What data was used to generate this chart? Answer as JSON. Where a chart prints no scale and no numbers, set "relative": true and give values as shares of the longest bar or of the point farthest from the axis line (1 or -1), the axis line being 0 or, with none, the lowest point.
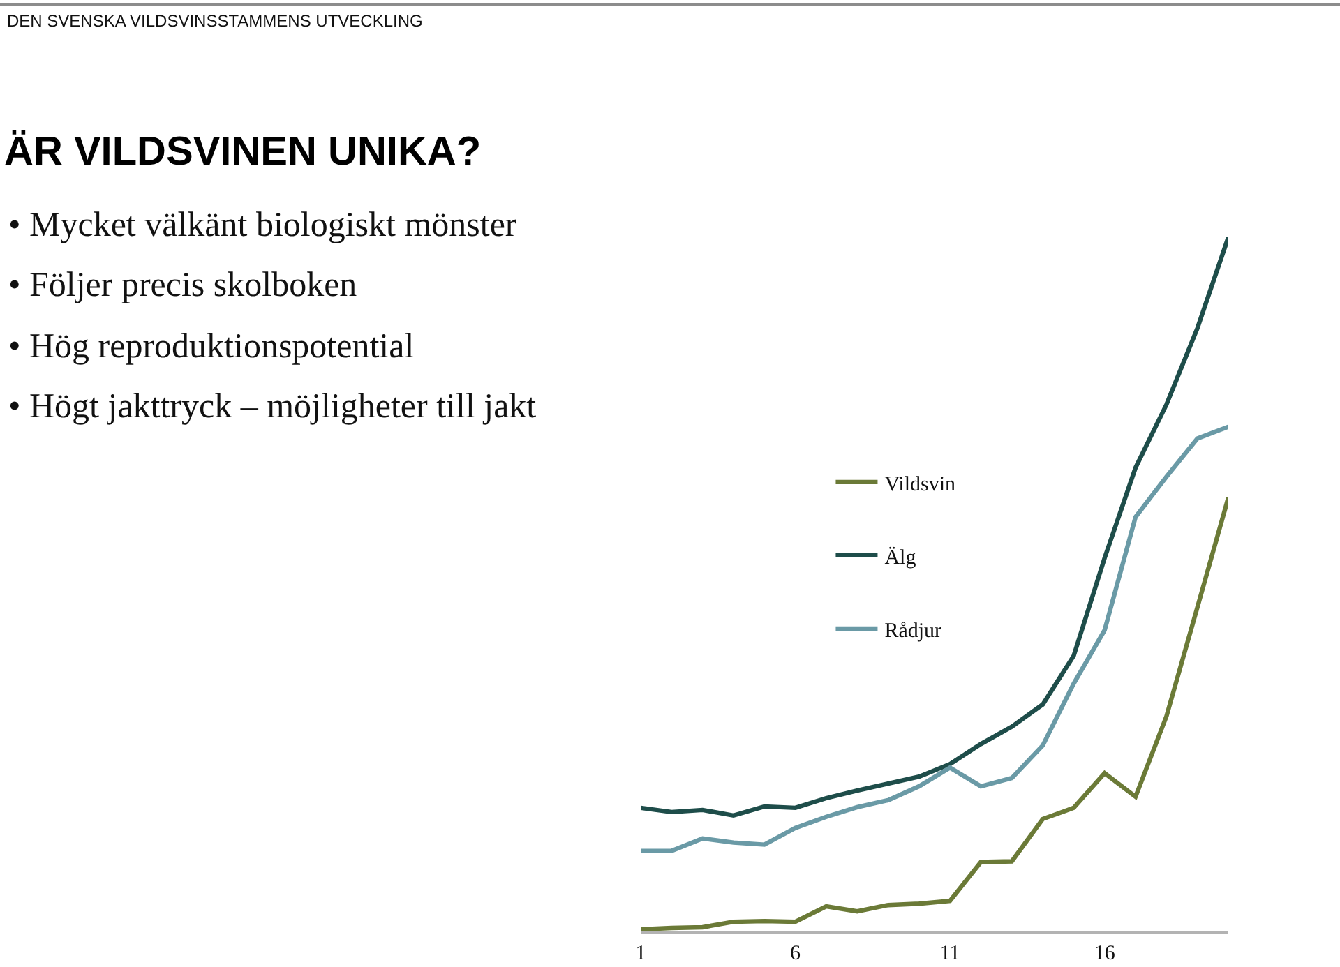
{
  "chart_data": {
    "type": "line",
    "title": "ÄR VILDSVINEN UNIKA?",
    "subtitle": "DEN SVENSKA VILDSVINSSTAMMENS UTVECKLING",
    "annotations": [
      "• Mycket välkänt biologiskt mönster",
      "• Följer precis skolboken",
      "• Hög reproduktionspotential",
      "• Högt jakttryck – möjligheter till jakt"
    ],
    "x": [
      1,
      2,
      3,
      4,
      5,
      6,
      7,
      8,
      9,
      10,
      11,
      12,
      13,
      14,
      15,
      16,
      17,
      18,
      19,
      20
    ],
    "xlim": [
      1,
      20
    ],
    "xticks": [
      1,
      6,
      11,
      16
    ],
    "relative": true,
    "series": [
      {
        "name": "Vildsvin",
        "color": "#6b7a37",
        "values": [
          0.003,
          0.005,
          0.006,
          0.014,
          0.015,
          0.014,
          0.036,
          0.029,
          0.038,
          0.04,
          0.044,
          0.1,
          0.101,
          0.162,
          0.178,
          0.228,
          0.194,
          0.31,
          0.467,
          0.625
        ]
      },
      {
        "name": "Älg",
        "color": "#1e4d4a",
        "values": [
          0.178,
          0.172,
          0.175,
          0.167,
          0.18,
          0.178,
          0.192,
          0.203,
          0.213,
          0.223,
          0.241,
          0.27,
          0.295,
          0.327,
          0.397,
          0.538,
          0.668,
          0.759,
          0.869,
          1.0
        ]
      },
      {
        "name": "Rådjur",
        "color": "#6a9aa6",
        "values": [
          0.116,
          0.116,
          0.134,
          0.128,
          0.125,
          0.149,
          0.165,
          0.179,
          0.189,
          0.209,
          0.236,
          0.209,
          0.221,
          0.268,
          0.357,
          0.434,
          0.597,
          0.655,
          0.71,
          0.727
        ]
      }
    ],
    "legend": "left",
    "grid": false,
    "marker": "none",
    "line_style": "solid"
  }
}
